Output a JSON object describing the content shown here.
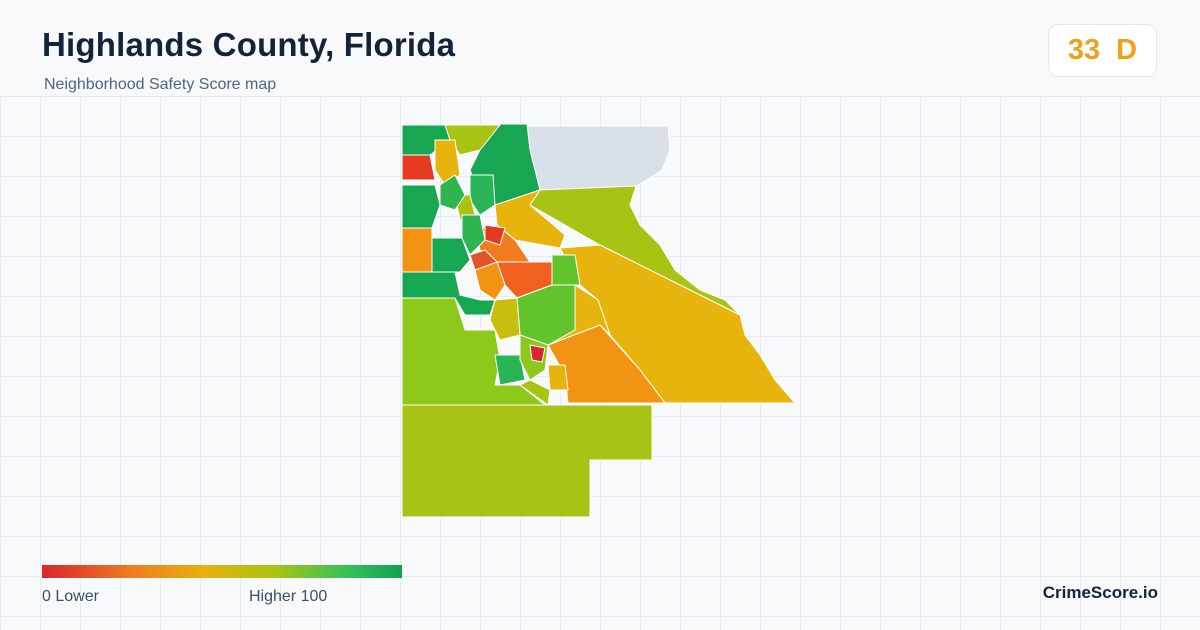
{
  "header": {
    "title": "Highlands County, Florida",
    "subtitle": "Neighborhood Safety Score map"
  },
  "score": {
    "value": "33",
    "grade": "D",
    "color": "#f0a01a"
  },
  "legend": {
    "min": "0",
    "min_label": "Lower",
    "max": "100",
    "max_label": "Higher",
    "colors": [
      "#d7262c",
      "#f07c20",
      "#e8b10e",
      "#a6c414",
      "#33c15a",
      "#12a150"
    ]
  },
  "brand": "CrimeScore.io",
  "map": {
    "no_data_color": "#d8e0e8"
  }
}
